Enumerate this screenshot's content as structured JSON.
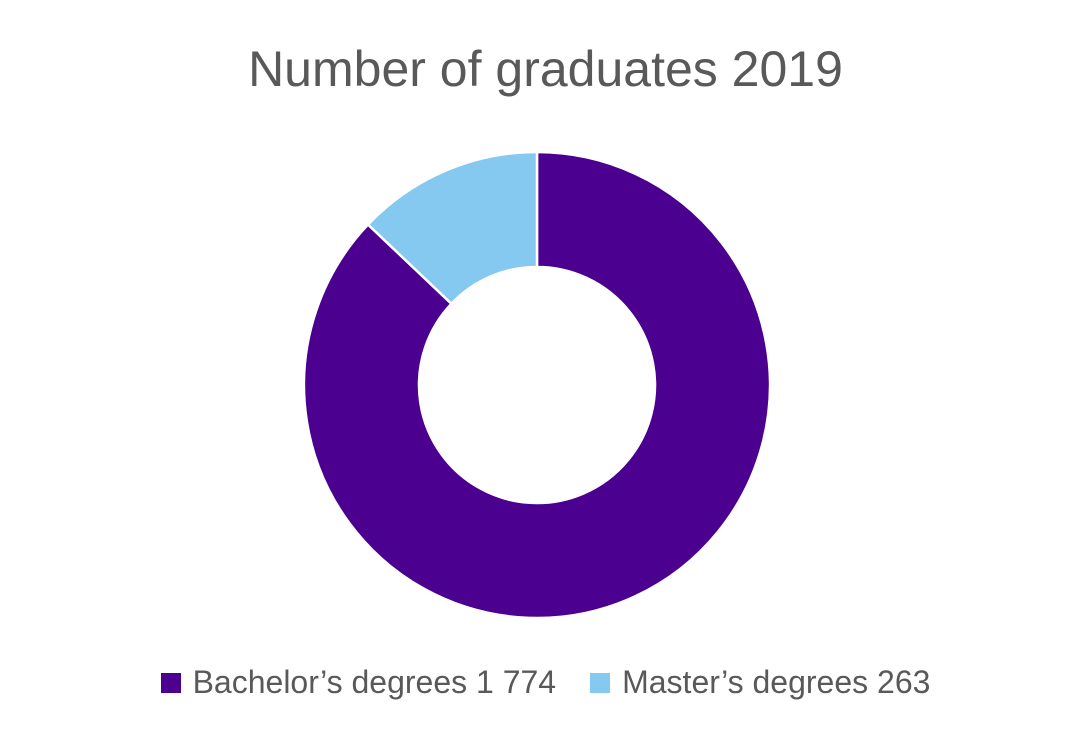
{
  "chart_data": {
    "type": "pie",
    "variant": "donut",
    "title": "Number of graduates 2019",
    "series": [
      {
        "name": "Bachelor’s degrees",
        "value": 1774,
        "label": "1 774",
        "color": "#4b0090"
      },
      {
        "name": "Master’s degrees",
        "value": 263,
        "label": "263",
        "color": "#85c8f0"
      }
    ],
    "legend_position": "bottom"
  }
}
